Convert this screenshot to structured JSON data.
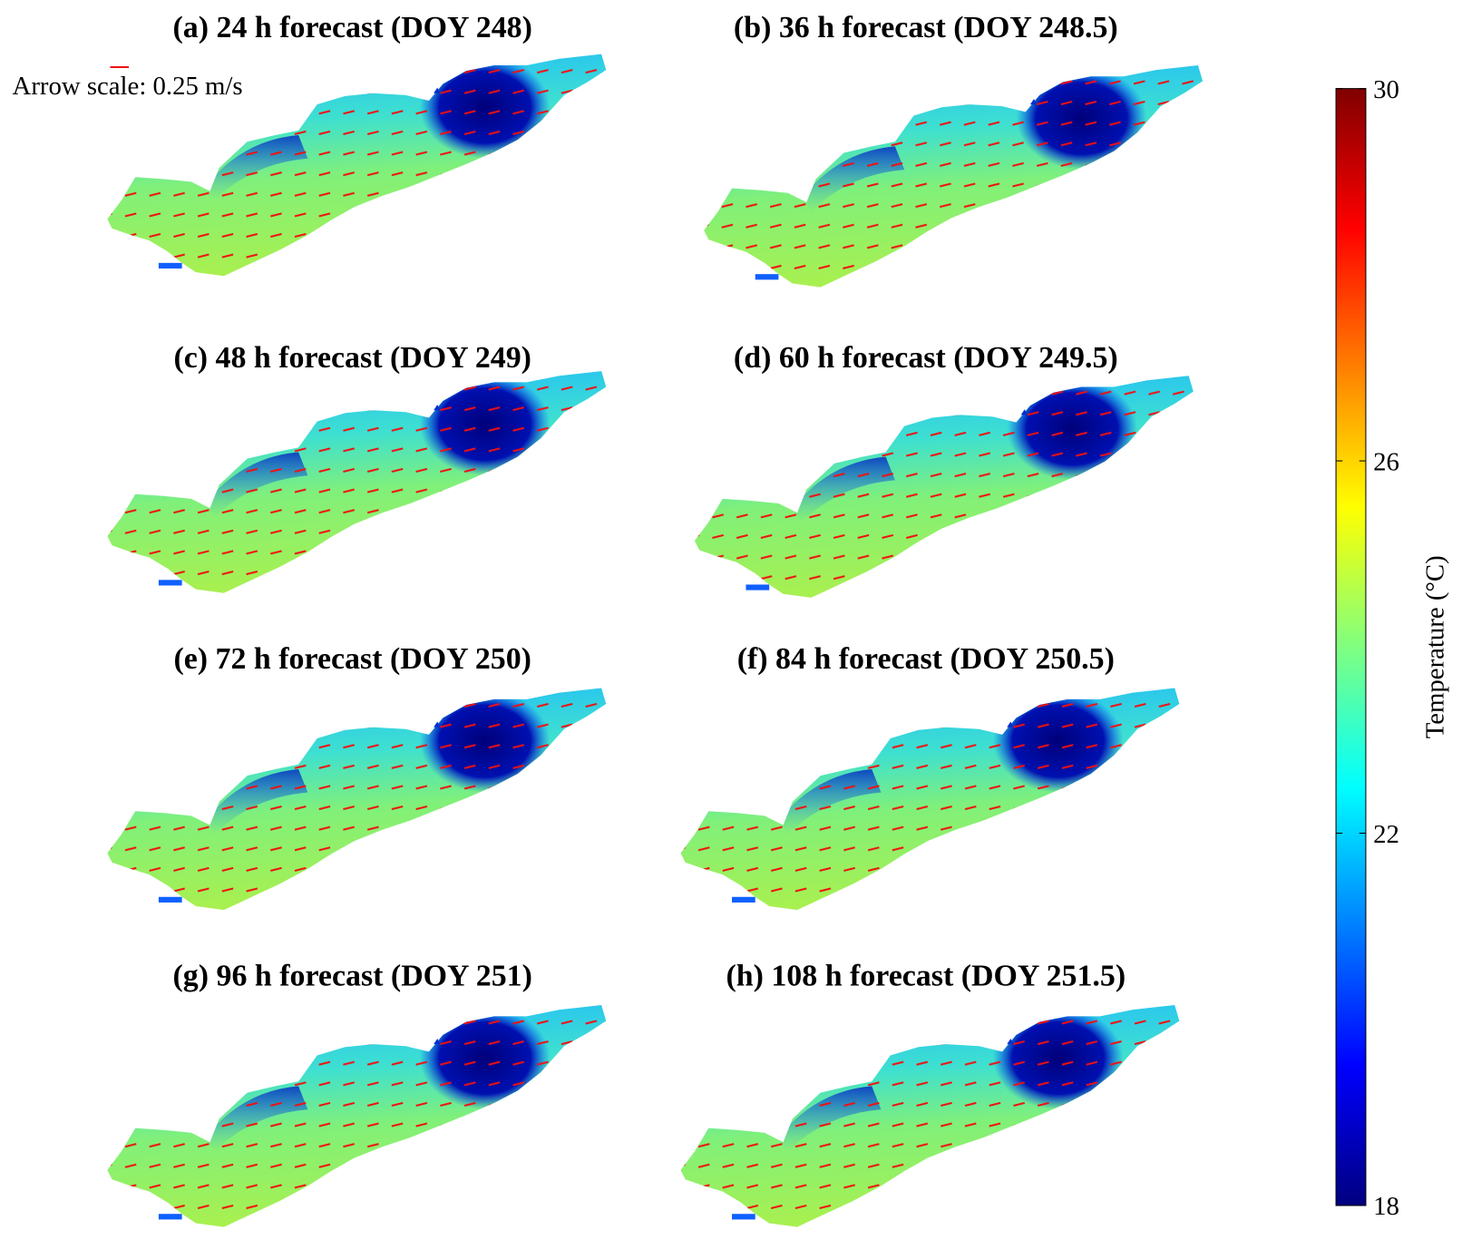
{
  "figure": {
    "panels": [
      {
        "title": "(a) 24 h forecast (DOY 248)"
      },
      {
        "title": "(b) 36 h forecast (DOY 248.5)"
      },
      {
        "title": "(c) 48 h forecast (DOY 249)"
      },
      {
        "title": "(d) 60 h forecast (DOY 249.5)"
      },
      {
        "title": "(e) 72 h forecast (DOY 250)"
      },
      {
        "title": "(f) 84 h forecast (DOY 250.5)"
      },
      {
        "title": "(g) 96 h forecast (DOY 251)"
      },
      {
        "title": "(h) 108 h forecast (DOY 251.5)"
      }
    ],
    "arrow_scale": "Arrow scale: 0.25 m/s",
    "colorbar": {
      "label": "Temperature (°C)",
      "range": [
        18,
        30
      ],
      "ticks": [
        18,
        22,
        26,
        30
      ]
    }
  }
}
